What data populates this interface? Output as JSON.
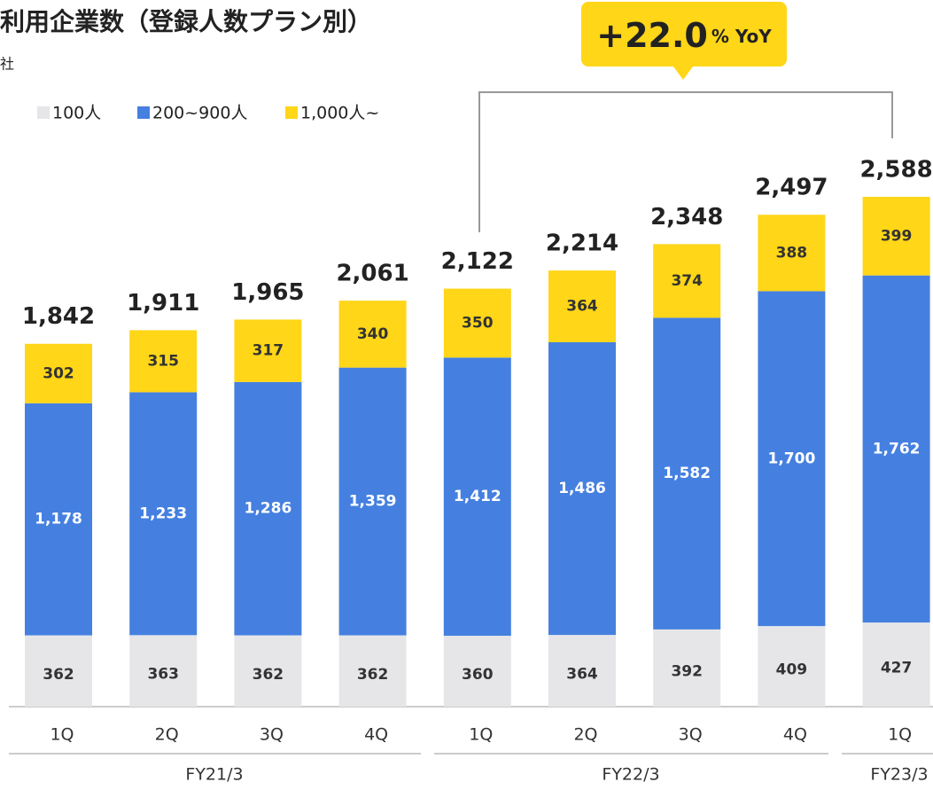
{
  "chart_data": {
    "type": "stacked-bar",
    "title": "利用企業数（登録人数プラン別）",
    "unit": "社",
    "annotation": [
      "+22.0",
      "% YoY"
    ],
    "categories": [
      "1Q",
      "2Q",
      "3Q",
      "4Q",
      "1Q",
      "2Q",
      "3Q",
      "4Q",
      "1Q"
    ],
    "groups": [
      "FY21/3",
      "FY22/3",
      "FY23/3"
    ],
    "series": [
      {
        "name": "100人",
        "color": "#e6e6e9",
        "label_color": "#333333",
        "values": [
          362,
          363,
          362,
          362,
          360,
          364,
          392,
          409,
          427
        ]
      },
      {
        "name": "200~900人",
        "color": "#4580e0",
        "label_color": "#ffffff",
        "values": [
          1178,
          1233,
          1286,
          1359,
          1412,
          1486,
          1582,
          1700,
          1762
        ],
        "value_labels": [
          "1,178",
          "1,233",
          "1,286",
          "1,359",
          "1,412",
          "1,486",
          "1,582",
          "1,700",
          "1,762"
        ]
      },
      {
        "name": "1,000人~",
        "color": "#ffd618",
        "label_color": "#333333",
        "values": [
          302,
          315,
          317,
          340,
          350,
          364,
          374,
          388,
          399
        ]
      }
    ],
    "totals": [
      1842,
      1911,
      1965,
      2061,
      2122,
      2214,
      2348,
      2497,
      2588
    ],
    "total_labels": [
      "1,842",
      "1,911",
      "1,965",
      "2,061",
      "2,122",
      "2,214",
      "2,348",
      "2,497",
      "2,588"
    ]
  }
}
